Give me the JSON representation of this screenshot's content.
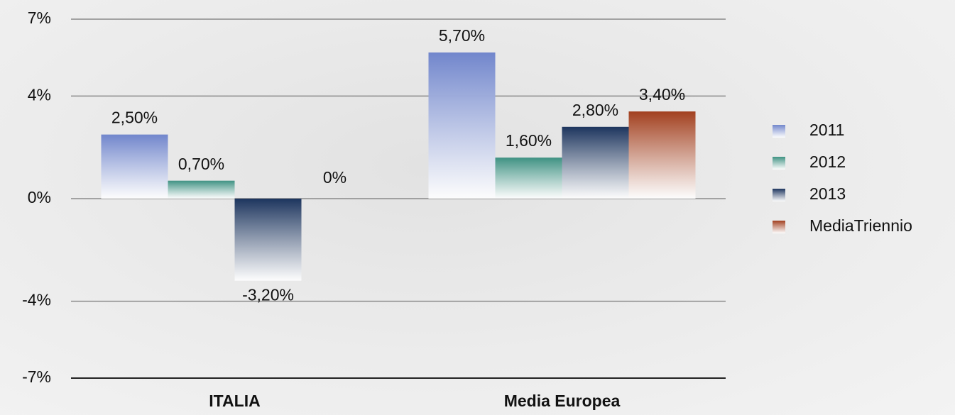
{
  "chart_data": {
    "type": "bar",
    "categories": [
      "ITALIA",
      "Media Europea"
    ],
    "series": [
      {
        "name": "2011",
        "color": "#7186cc",
        "values": [
          2.5,
          5.7
        ],
        "value_labels": [
          "2,50%",
          "5,70%"
        ]
      },
      {
        "name": "2012",
        "color": "#3f9283",
        "values": [
          0.7,
          1.6
        ],
        "value_labels": [
          "0,70%",
          "1,60%"
        ]
      },
      {
        "name": "2013",
        "color": "#1d355e",
        "values": [
          -3.2,
          2.8
        ],
        "value_labels": [
          "-3,20%",
          "2,80%"
        ]
      },
      {
        "name": "MediaTriennio",
        "color": "#a2401f",
        "values": [
          0,
          3.4
        ],
        "value_labels": [
          "0%",
          "3,40%"
        ]
      }
    ],
    "ylim": [
      -7,
      7
    ],
    "yticks": [
      {
        "value": 7,
        "label": "7%"
      },
      {
        "value": 4,
        "label": "4%"
      },
      {
        "value": 0,
        "label": "0%"
      },
      {
        "value": -4,
        "label": "-4%"
      },
      {
        "value": -7,
        "label": "-7%"
      }
    ],
    "grid": true,
    "legend": "right"
  }
}
